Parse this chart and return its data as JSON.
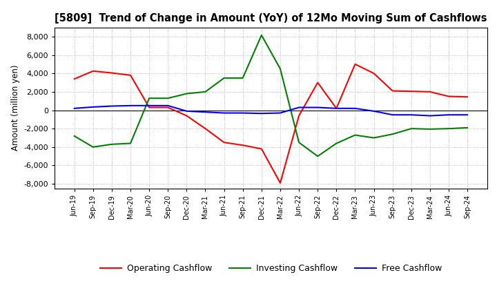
{
  "title": "[5809]  Trend of Change in Amount (YoY) of 12Mo Moving Sum of Cashflows",
  "ylabel": "Amount (million yen)",
  "x_labels": [
    "Jun-19",
    "Sep-19",
    "Dec-19",
    "Mar-20",
    "Jun-20",
    "Sep-20",
    "Dec-20",
    "Mar-21",
    "Jun-21",
    "Sep-21",
    "Dec-21",
    "Mar-22",
    "Jun-22",
    "Sep-22",
    "Dec-22",
    "Mar-23",
    "Jun-23",
    "Sep-23",
    "Dec-23",
    "Mar-24",
    "Jun-24",
    "Sep-24"
  ],
  "operating": [
    3400,
    4250,
    4050,
    3800,
    300,
    300,
    -600,
    -2000,
    -3500,
    -3800,
    -4200,
    -7900,
    -600,
    3000,
    200,
    5000,
    4000,
    2100,
    2050,
    2000,
    1500,
    1450
  ],
  "investing": [
    -2800,
    -4000,
    -3700,
    -3600,
    1300,
    1300,
    1800,
    2000,
    3500,
    3500,
    8150,
    4500,
    -3500,
    -5000,
    -3600,
    -2700,
    -3000,
    -2600,
    -2000,
    -2050,
    -2000,
    -1900
  ],
  "free": [
    200,
    350,
    450,
    500,
    500,
    500,
    -100,
    -200,
    -300,
    -300,
    -350,
    -300,
    300,
    300,
    200,
    200,
    -100,
    -500,
    -500,
    -600,
    -500,
    -500
  ],
  "operating_color": "#ff0000",
  "investing_color": "#008000",
  "free_color": "#0000ff",
  "ylim": [
    -8500,
    9000
  ],
  "yticks": [
    -8000,
    -6000,
    -4000,
    -2000,
    0,
    2000,
    4000,
    6000,
    8000
  ],
  "background_color": "#ffffff",
  "grid_color": "#aaaaaa"
}
